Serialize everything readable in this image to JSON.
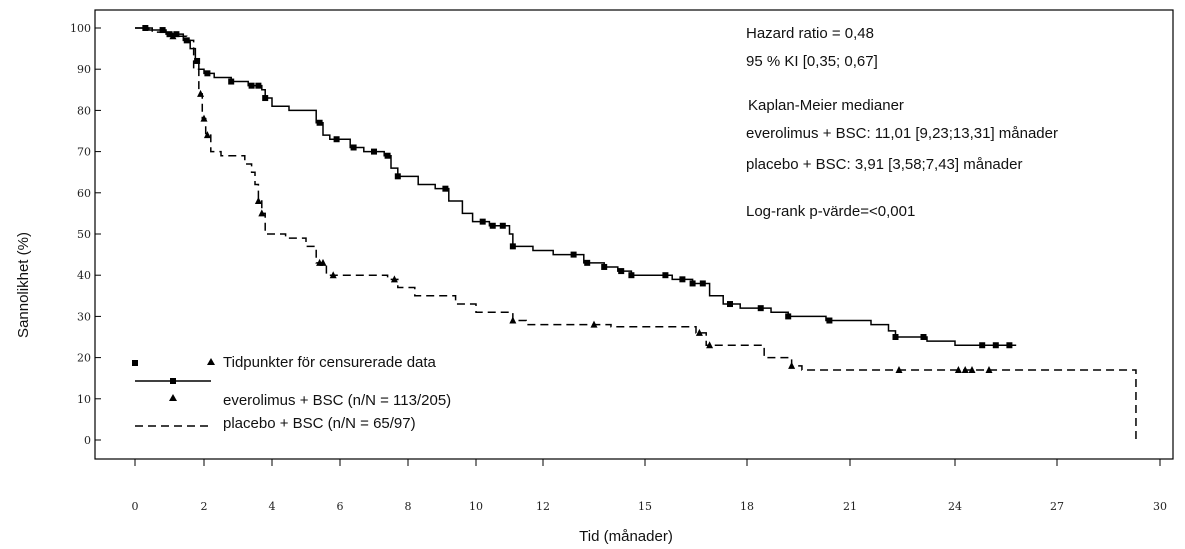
{
  "chart_data": {
    "type": "line",
    "title": "",
    "xlabel": "Tid (månader)",
    "ylabel": "Sannolikhet (%)",
    "xlim": [
      0,
      30
    ],
    "ylim": [
      0,
      100
    ],
    "x_ticks": [
      {
        "value": 0,
        "label": "0"
      },
      {
        "value": 2,
        "label": "2"
      },
      {
        "value": 4,
        "label": "4"
      },
      {
        "value": 6,
        "label": "6"
      },
      {
        "value": 8,
        "label": "8"
      },
      {
        "value": 10,
        "label": "10"
      },
      {
        "value": 12,
        "label": "12"
      },
      {
        "value": 15,
        "label": "15"
      },
      {
        "value": 18,
        "label": "18"
      },
      {
        "value": 21,
        "label": "21"
      },
      {
        "value": 24,
        "label": "24"
      },
      {
        "value": 27,
        "label": "27"
      },
      {
        "value": 30,
        "label": "30"
      }
    ],
    "y_ticks": [
      {
        "value": 0,
        "label": "0"
      },
      {
        "value": 10,
        "label": "10"
      },
      {
        "value": 20,
        "label": "20"
      },
      {
        "value": 30,
        "label": "30"
      },
      {
        "value": 40,
        "label": "40"
      },
      {
        "value": 50,
        "label": "50"
      },
      {
        "value": 60,
        "label": "60"
      },
      {
        "value": 70,
        "label": "70"
      },
      {
        "value": 80,
        "label": "80"
      },
      {
        "value": 90,
        "label": "90"
      },
      {
        "value": 100,
        "label": "100"
      }
    ],
    "grid": false,
    "legend_position": "bottom-left",
    "annotations": [
      "Hazard ratio = 0,48",
      "95 % KI [0,35; 0,67]",
      "Kaplan-Meier medianer",
      "everolimus + BSC: 11,01 [9,23;13,31] månader",
      "placebo + BSC: 3,91 [3,58;7,43] månader",
      "Log-rank p-värde=<0,001"
    ],
    "legend": {
      "censor_label": "Tidpunkter för censurerade data",
      "entries": [
        {
          "label": "everolimus + BSC (n/N = 113/205)",
          "style": "solid",
          "marker": "square"
        },
        {
          "label": "placebo + BSC (n/N = 65/97)",
          "style": "dashed",
          "marker": "triangle"
        }
      ]
    },
    "series": [
      {
        "name": "everolimus + BSC (n/N = 113/205)",
        "line_style": "solid",
        "marker": "square",
        "color": "#000000",
        "steps": [
          [
            0,
            100
          ],
          [
            0.4,
            99.5
          ],
          [
            0.9,
            98.5
          ],
          [
            1.4,
            97
          ],
          [
            1.6,
            95
          ],
          [
            1.75,
            92
          ],
          [
            1.85,
            90
          ],
          [
            2.0,
            89
          ],
          [
            2.3,
            88
          ],
          [
            2.8,
            87
          ],
          [
            3.3,
            86
          ],
          [
            3.7,
            85
          ],
          [
            3.8,
            83
          ],
          [
            4.0,
            81
          ],
          [
            4.5,
            80
          ],
          [
            5.3,
            77
          ],
          [
            5.5,
            74
          ],
          [
            5.7,
            73
          ],
          [
            6.3,
            71
          ],
          [
            6.7,
            70
          ],
          [
            7.3,
            69
          ],
          [
            7.5,
            66
          ],
          [
            7.7,
            64
          ],
          [
            8.3,
            62
          ],
          [
            8.8,
            61
          ],
          [
            9.2,
            58
          ],
          [
            9.6,
            55
          ],
          [
            9.9,
            53
          ],
          [
            10.4,
            52
          ],
          [
            11.0,
            50
          ],
          [
            11.1,
            47
          ],
          [
            11.7,
            46
          ],
          [
            12.3,
            45
          ],
          [
            13.2,
            43
          ],
          [
            13.8,
            42
          ],
          [
            14.2,
            41
          ],
          [
            14.6,
            40
          ],
          [
            15.8,
            39
          ],
          [
            16.4,
            38
          ],
          [
            16.9,
            35
          ],
          [
            17.3,
            33
          ],
          [
            17.8,
            32
          ],
          [
            18.7,
            31
          ],
          [
            19.2,
            30
          ],
          [
            20.3,
            29
          ],
          [
            21.6,
            28
          ],
          [
            22.1,
            26.5
          ],
          [
            22.3,
            25
          ],
          [
            23.2,
            24
          ],
          [
            24.0,
            23
          ],
          [
            25.8,
            23
          ]
        ],
        "censored": [
          0.3,
          0.8,
          1.0,
          1.2,
          1.5,
          1.8,
          2.1,
          2.8,
          3.4,
          3.6,
          3.8,
          5.4,
          5.9,
          6.4,
          7.0,
          7.4,
          7.7,
          9.1,
          10.2,
          10.5,
          10.8,
          11.1,
          12.9,
          13.3,
          13.8,
          14.3,
          14.6,
          15.6,
          16.1,
          16.4,
          16.7,
          17.5,
          18.4,
          19.2,
          20.4,
          22.3,
          23.1,
          24.8,
          25.2,
          25.6
        ]
      },
      {
        "name": "placebo + BSC (n/N = 65/97)",
        "line_style": "dashed",
        "marker": "triangle",
        "color": "#000000",
        "steps": [
          [
            0,
            100
          ],
          [
            0.5,
            99
          ],
          [
            1.0,
            98
          ],
          [
            1.5,
            97
          ],
          [
            1.7,
            90
          ],
          [
            1.85,
            84
          ],
          [
            1.95,
            78
          ],
          [
            2.05,
            74
          ],
          [
            2.2,
            70
          ],
          [
            2.5,
            69
          ],
          [
            3.2,
            67
          ],
          [
            3.4,
            65
          ],
          [
            3.5,
            62
          ],
          [
            3.6,
            58
          ],
          [
            3.7,
            55
          ],
          [
            3.8,
            50
          ],
          [
            4.4,
            49
          ],
          [
            5.0,
            47
          ],
          [
            5.3,
            43
          ],
          [
            5.6,
            40
          ],
          [
            7.4,
            39
          ],
          [
            7.7,
            37
          ],
          [
            8.2,
            35
          ],
          [
            9.4,
            33
          ],
          [
            10.0,
            31
          ],
          [
            11.1,
            29
          ],
          [
            11.5,
            28
          ],
          [
            14.0,
            27.5
          ],
          [
            16.5,
            26
          ],
          [
            16.8,
            23
          ],
          [
            18.5,
            20
          ],
          [
            19.3,
            18
          ],
          [
            19.6,
            17
          ],
          [
            29.3,
            17
          ],
          [
            29.3,
            0
          ]
        ],
        "censored": [
          1.1,
          1.9,
          2.0,
          2.1,
          3.6,
          3.7,
          5.4,
          5.5,
          5.8,
          7.6,
          11.1,
          13.5,
          16.6,
          16.9,
          19.3,
          22.4,
          24.1,
          24.3,
          24.5,
          25.0
        ]
      }
    ]
  }
}
